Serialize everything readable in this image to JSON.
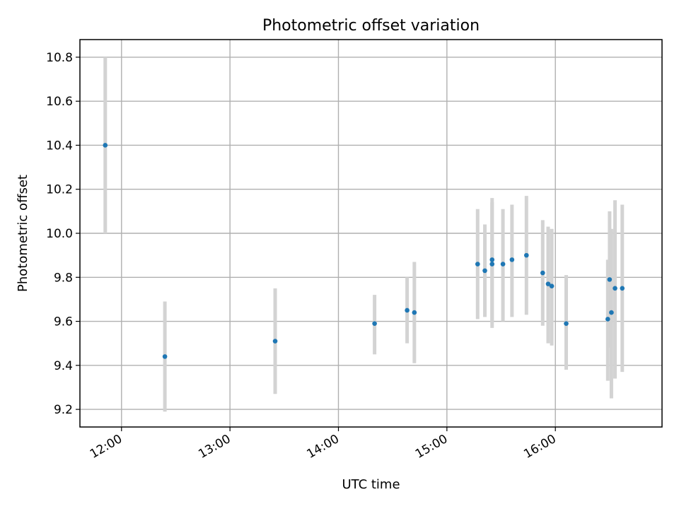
{
  "chart_data": {
    "type": "scatter",
    "title": "Photometric offset variation",
    "xlabel": "UTC time",
    "ylabel": "Photometric offset",
    "x_type": "time",
    "xlim": [
      "11:37",
      "16:59"
    ],
    "ylim": [
      9.12,
      10.88
    ],
    "x_ticks": [
      "12:00",
      "13:00",
      "14:00",
      "15:00",
      "16:00"
    ],
    "y_ticks": [
      "9.2",
      "9.4",
      "9.6",
      "9.8",
      "10.0",
      "10.2",
      "10.4",
      "10.6",
      "10.8"
    ],
    "grid": true,
    "series": [
      {
        "marker_color": "#1f77b4",
        "errorbar_color": "#d3d3d3",
        "points": [
          {
            "x": "11:51",
            "y": 10.4,
            "err_low": 10.0,
            "err_high": 10.8
          },
          {
            "x": "12:24",
            "y": 9.44,
            "err_low": 9.19,
            "err_high": 9.69
          },
          {
            "x": "13:25",
            "y": 9.51,
            "err_low": 9.27,
            "err_high": 9.75
          },
          {
            "x": "14:20",
            "y": 9.59,
            "err_low": 9.45,
            "err_high": 9.72
          },
          {
            "x": "14:38",
            "y": 9.65,
            "err_low": 9.5,
            "err_high": 9.8
          },
          {
            "x": "14:42",
            "y": 9.64,
            "err_low": 9.41,
            "err_high": 9.87
          },
          {
            "x": "15:17",
            "y": 9.86,
            "err_low": 9.61,
            "err_high": 10.11
          },
          {
            "x": "15:21",
            "y": 9.83,
            "err_low": 9.62,
            "err_high": 10.04
          },
          {
            "x": "15:25",
            "y": 9.88,
            "err_low": 9.6,
            "err_high": 10.16
          },
          {
            "x": "15:25",
            "y": 9.86,
            "err_low": 9.57,
            "err_high": 10.14
          },
          {
            "x": "15:31",
            "y": 9.86,
            "err_low": 9.6,
            "err_high": 10.11
          },
          {
            "x": "15:36",
            "y": 9.88,
            "err_low": 9.62,
            "err_high": 10.13
          },
          {
            "x": "15:44",
            "y": 9.9,
            "err_low": 9.63,
            "err_high": 10.17
          },
          {
            "x": "15:53",
            "y": 9.82,
            "err_low": 9.58,
            "err_high": 10.06
          },
          {
            "x": "15:56",
            "y": 9.77,
            "err_low": 9.5,
            "err_high": 10.03
          },
          {
            "x": "15:58",
            "y": 9.76,
            "err_low": 9.49,
            "err_high": 10.02
          },
          {
            "x": "16:06",
            "y": 9.59,
            "err_low": 9.38,
            "err_high": 9.81
          },
          {
            "x": "16:29",
            "y": 9.61,
            "err_low": 9.33,
            "err_high": 9.88
          },
          {
            "x": "16:30",
            "y": 9.79,
            "err_low": 9.48,
            "err_high": 10.1
          },
          {
            "x": "16:31",
            "y": 9.64,
            "err_low": 9.25,
            "err_high": 10.02
          },
          {
            "x": "16:33",
            "y": 9.75,
            "err_low": 9.34,
            "err_high": 10.15
          },
          {
            "x": "16:37",
            "y": 9.75,
            "err_low": 9.37,
            "err_high": 10.13
          }
        ]
      }
    ]
  }
}
